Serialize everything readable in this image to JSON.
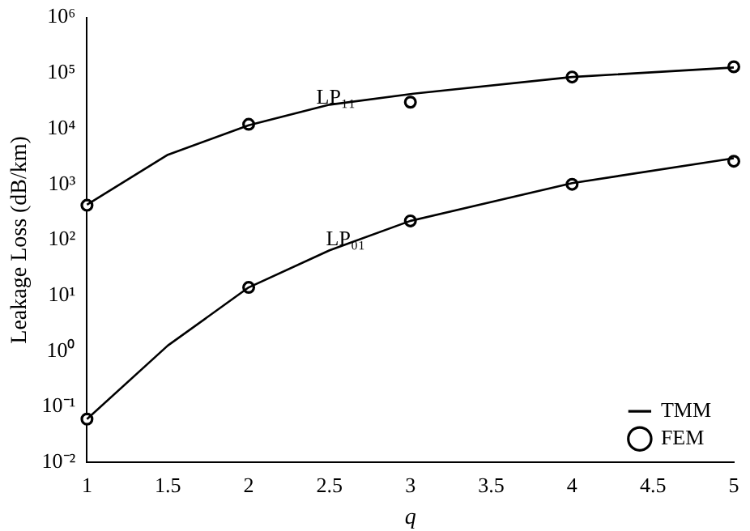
{
  "chart_data": {
    "type": "line",
    "xlabel": "q",
    "ylabel": "Leakage Loss (dB/km)",
    "xlim": [
      1,
      5
    ],
    "xticks": [
      1,
      1.5,
      2,
      2.5,
      3,
      3.5,
      4,
      4.5,
      5
    ],
    "ylim": [
      0.01,
      1000000
    ],
    "yticks": [
      {
        "value": 0.01,
        "label": "10⁻²"
      },
      {
        "value": 0.1,
        "label": "10⁻¹"
      },
      {
        "value": 1,
        "label": "10⁰"
      },
      {
        "value": 10,
        "label": "10¹"
      },
      {
        "value": 100,
        "label": "10²"
      },
      {
        "value": 1000,
        "label": "10³"
      },
      {
        "value": 10000,
        "label": "10⁴"
      },
      {
        "value": 100000,
        "label": "10⁵"
      },
      {
        "value": 1000000,
        "label": "10⁶"
      }
    ],
    "log": "y",
    "grid": false,
    "legend": "bottom right",
    "series": [
      {
        "name": "TMM",
        "color": "#000000",
        "marker": "none",
        "line_style": "solid",
        "x": [
          1,
          1.5,
          2,
          2.5,
          3,
          4,
          5
        ],
        "values": [
          430,
          3400,
          11500,
          27000,
          42000,
          85000,
          126000
        ]
      },
      {
        "color": "#000000",
        "marker": "none",
        "line_style": "solid",
        "x": [
          1,
          1.5,
          2,
          2.5,
          3,
          4,
          5
        ],
        "values": [
          0.06,
          1.26,
          14,
          65,
          220,
          1050,
          2950
        ]
      },
      {
        "name": "FEM",
        "type": "scatter",
        "color": "#000000",
        "marker": "circle",
        "x": [
          1,
          2,
          3,
          4,
          5
        ],
        "values": [
          420,
          12000,
          30000,
          85000,
          130000
        ]
      },
      {
        "type": "scatter",
        "color": "#000000",
        "marker": "circle",
        "x": [
          1,
          2,
          3,
          4,
          5
        ],
        "values": [
          0.06,
          14,
          220,
          1000,
          2600
        ]
      }
    ],
    "annotations": [
      {
        "text": "LP₁₁",
        "x": 2.54,
        "y": 35000
      },
      {
        "text": "LP₀₁",
        "x": 2.6,
        "y": 100
      }
    ]
  }
}
